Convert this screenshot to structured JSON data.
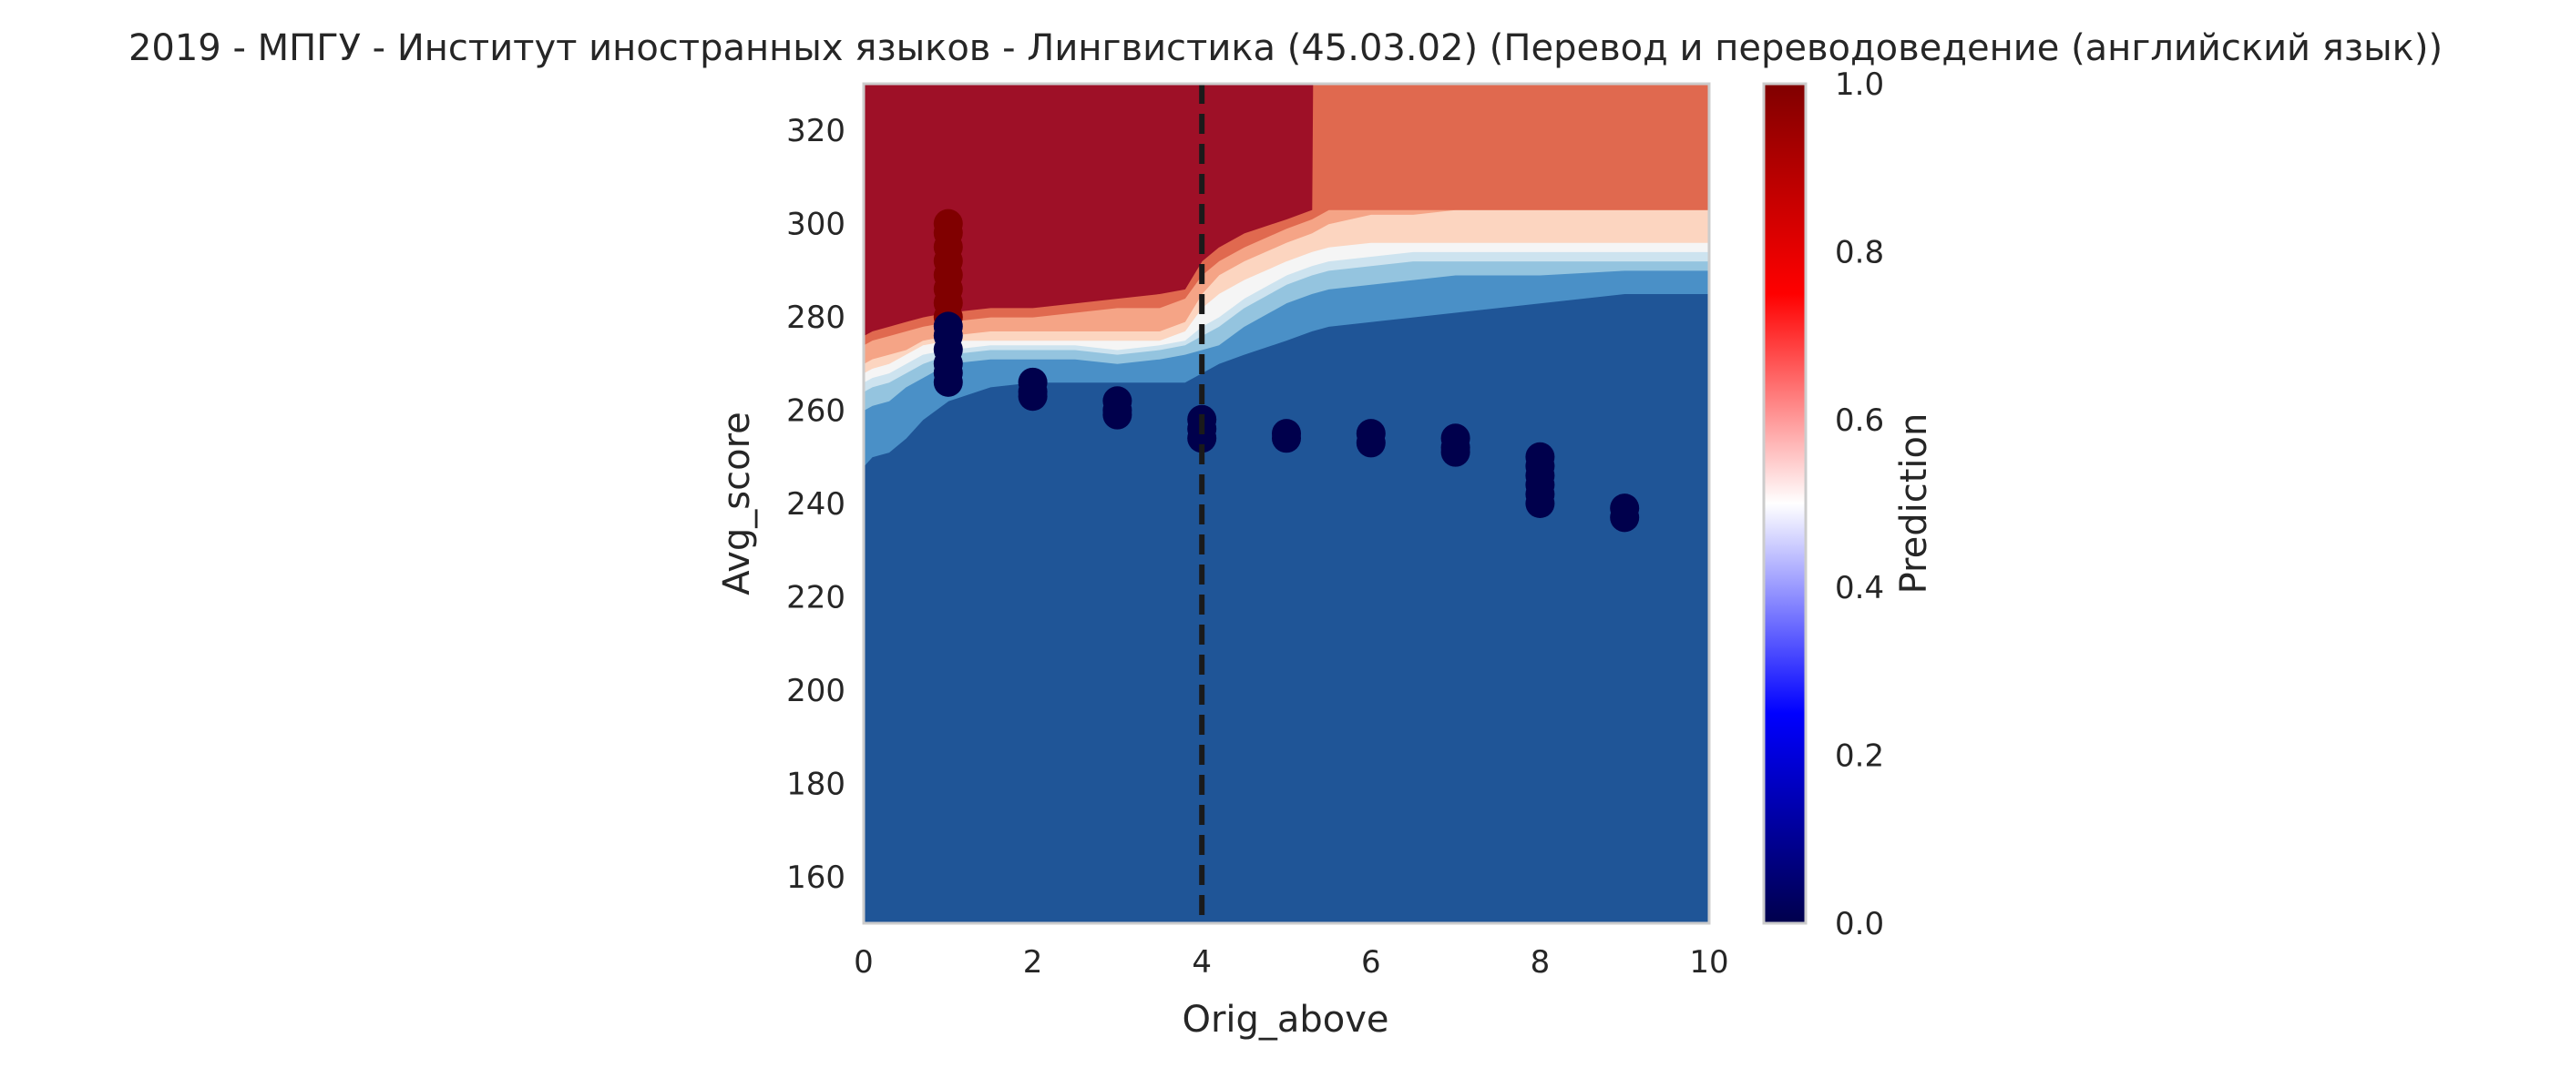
{
  "chart_data": {
    "type": "contour",
    "title": "2019 - МПГУ - Институт иностранных языков - Лингвистика (45.03.02) (Перевод и переводоведение (английский язык))",
    "xlabel": "Orig_above",
    "ylabel": "Avg_score",
    "xlim": [
      0,
      10
    ],
    "ylim": [
      150,
      330
    ],
    "xticks": [
      "0",
      "2",
      "4",
      "6",
      "8",
      "10"
    ],
    "yticks": [
      "160",
      "180",
      "200",
      "220",
      "240",
      "260",
      "280",
      "300",
      "320"
    ],
    "grid": false,
    "threshold_line": {
      "x": 4,
      "style": "dashed",
      "color": "#1a1a1a"
    },
    "contour_levels": [
      {
        "range": "0.0-0.1",
        "color": "#1f5597"
      },
      {
        "range": "0.1-0.2",
        "color": "#4a90c7"
      },
      {
        "range": "0.2-0.3",
        "color": "#94c4df"
      },
      {
        "range": "0.3-0.4",
        "color": "#cde3ef"
      },
      {
        "range": "0.4-0.5",
        "color": "#f5f5f5"
      },
      {
        "range": "0.5-0.6",
        "color": "#fcd5c0"
      },
      {
        "range": "0.6-0.7",
        "color": "#f5a486"
      },
      {
        "range": "0.7-0.8",
        "color": "#e0694f"
      },
      {
        "range": "0.9-1.0",
        "color": "#9e1027"
      }
    ],
    "contour_boundaries": [
      {
        "x": [
          0,
          0.1,
          0.3,
          0.5,
          0.7,
          1.0,
          1.5,
          2.0,
          2.5,
          3.0,
          3.5,
          3.8,
          4.0,
          4.2,
          4.5,
          5.0,
          5.3,
          5.5,
          6.0,
          6.5,
          7.0,
          8.0,
          9.0,
          10.0
        ],
        "y": [
          248,
          250,
          251,
          254,
          258,
          262,
          265,
          266,
          266,
          266,
          266,
          266,
          268,
          270,
          272,
          275,
          277,
          278,
          279,
          280,
          281,
          283,
          285,
          285
        ]
      },
      {
        "x": [
          0,
          0.1,
          0.3,
          0.5,
          0.7,
          1.0,
          1.5,
          2.0,
          2.5,
          3.0,
          3.5,
          3.8,
          4.0,
          4.2,
          4.5,
          5.0,
          5.3,
          5.5,
          6.0,
          6.5,
          7.0,
          8.0,
          9.0,
          10.0
        ],
        "y": [
          260,
          261,
          262,
          265,
          267,
          270,
          271,
          271,
          271,
          270,
          271,
          272,
          273,
          274,
          278,
          283,
          285,
          286,
          287,
          288,
          289,
          289,
          290,
          290
        ]
      },
      {
        "x": [
          0,
          0.1,
          0.3,
          0.5,
          0.7,
          1.0,
          1.5,
          2.0,
          2.5,
          3.0,
          3.5,
          3.8,
          4.0,
          4.2,
          4.5,
          5.0,
          5.3,
          5.5,
          6.0,
          6.5,
          7.0,
          8.0,
          9.0,
          10.0
        ],
        "y": [
          264,
          265,
          266,
          268,
          270,
          272,
          273,
          273,
          273,
          272,
          273,
          274,
          276,
          278,
          282,
          287,
          289,
          290,
          291,
          292,
          292,
          292,
          292,
          292
        ]
      },
      {
        "x": [
          0,
          0.1,
          0.3,
          0.5,
          0.7,
          1.0,
          1.5,
          2.0,
          2.5,
          3.0,
          3.5,
          3.8,
          4.0,
          4.2,
          4.5,
          5.0,
          5.3,
          5.5,
          6.0,
          6.5,
          7.0,
          8.0,
          9.0,
          10.0
        ],
        "y": [
          266,
          267,
          268,
          270,
          272,
          273,
          274,
          274,
          274,
          273,
          274,
          275,
          278,
          280,
          284,
          289,
          291,
          292,
          293,
          294,
          294,
          294,
          294,
          294
        ]
      },
      {
        "x": [
          0,
          0.1,
          0.3,
          0.5,
          0.7,
          1.0,
          1.5,
          2.0,
          2.5,
          3.0,
          3.5,
          3.8,
          4.0,
          4.2,
          4.5,
          5.0,
          5.3,
          5.5,
          6.0,
          6.5,
          7.0,
          8.0,
          9.0,
          10.0
        ],
        "y": [
          268,
          269,
          270,
          272,
          274,
          275,
          275,
          275,
          275,
          275,
          275,
          277,
          282,
          285,
          288,
          292,
          294,
          295,
          296,
          296,
          296,
          296,
          296,
          296
        ]
      },
      {
        "x": [
          0,
          0.1,
          0.3,
          0.5,
          0.7,
          1.0,
          1.5,
          2.0,
          2.5,
          3.0,
          3.5,
          3.8,
          4.0,
          4.2,
          4.5,
          5.0,
          5.3,
          5.5,
          6.0,
          6.5,
          7.0,
          8.0,
          9.0,
          10.0
        ],
        "y": [
          270,
          271,
          272,
          273,
          275,
          276,
          277,
          277,
          277,
          277,
          277,
          279,
          285,
          289,
          292,
          296,
          298,
          300,
          302,
          302,
          303,
          303,
          303,
          303
        ]
      },
      {
        "x": [
          0,
          0.1,
          0.3,
          0.5,
          0.7,
          1.0,
          1.5,
          2.0,
          2.5,
          3.0,
          3.5,
          3.8,
          4.0,
          4.2,
          4.5,
          5.0,
          5.3,
          5.5,
          6.0,
          6.5,
          7.0,
          8.0,
          9.0,
          10.0
        ],
        "y": [
          274,
          275,
          276,
          277,
          278,
          279,
          280,
          280,
          281,
          282,
          282,
          284,
          289,
          292,
          295,
          299,
          301,
          303,
          303,
          303,
          303,
          303,
          303,
          303
        ]
      },
      {
        "x": [
          0,
          0.1,
          0.3,
          0.5,
          0.7,
          1.0,
          1.5,
          2.0,
          2.5,
          3.0,
          3.5,
          3.8,
          4.0,
          4.2,
          4.5,
          5.0,
          5.3,
          5.31,
          5.5,
          6.0,
          6.5,
          7.0,
          8.0,
          9.0,
          10.0
        ],
        "y": [
          276,
          277,
          278,
          279,
          280,
          281,
          282,
          282,
          283,
          284,
          285,
          286,
          292,
          295,
          298,
          301,
          303,
          330,
          330,
          330,
          330,
          330,
          330,
          330,
          330
        ]
      }
    ],
    "scatter": [
      {
        "x": 1,
        "y": 300,
        "v": 1.0
      },
      {
        "x": 1,
        "y": 298,
        "v": 1.0
      },
      {
        "x": 1,
        "y": 295,
        "v": 1.0
      },
      {
        "x": 1,
        "y": 292,
        "v": 1.0
      },
      {
        "x": 1,
        "y": 289,
        "v": 1.0
      },
      {
        "x": 1,
        "y": 286,
        "v": 1.0
      },
      {
        "x": 1,
        "y": 283,
        "v": 1.0
      },
      {
        "x": 1,
        "y": 280,
        "v": 1.0
      },
      {
        "x": 1,
        "y": 278,
        "v": 0.0
      },
      {
        "x": 1,
        "y": 276,
        "v": 0.0
      },
      {
        "x": 1,
        "y": 273,
        "v": 0.0
      },
      {
        "x": 1,
        "y": 270,
        "v": 0.0
      },
      {
        "x": 1,
        "y": 268,
        "v": 0.0
      },
      {
        "x": 1,
        "y": 266,
        "v": 0.0
      },
      {
        "x": 2,
        "y": 266,
        "v": 0.0
      },
      {
        "x": 2,
        "y": 264,
        "v": 0.0
      },
      {
        "x": 2,
        "y": 263,
        "v": 0.0
      },
      {
        "x": 3,
        "y": 262,
        "v": 0.0
      },
      {
        "x": 3,
        "y": 260,
        "v": 0.0
      },
      {
        "x": 3,
        "y": 259,
        "v": 0.0
      },
      {
        "x": 4,
        "y": 258,
        "v": 0.0
      },
      {
        "x": 4,
        "y": 256,
        "v": 0.0
      },
      {
        "x": 4,
        "y": 254,
        "v": 0.0
      },
      {
        "x": 5,
        "y": 255,
        "v": 0.0
      },
      {
        "x": 5,
        "y": 254,
        "v": 0.0
      },
      {
        "x": 6,
        "y": 255,
        "v": 0.0
      },
      {
        "x": 6,
        "y": 253,
        "v": 0.0
      },
      {
        "x": 7,
        "y": 254,
        "v": 0.0
      },
      {
        "x": 7,
        "y": 252,
        "v": 0.0
      },
      {
        "x": 7,
        "y": 251,
        "v": 0.0
      },
      {
        "x": 8,
        "y": 250,
        "v": 0.0
      },
      {
        "x": 8,
        "y": 248,
        "v": 0.0
      },
      {
        "x": 8,
        "y": 246,
        "v": 0.0
      },
      {
        "x": 8,
        "y": 244,
        "v": 0.0
      },
      {
        "x": 8,
        "y": 242,
        "v": 0.0
      },
      {
        "x": 8,
        "y": 240,
        "v": 0.0
      },
      {
        "x": 9,
        "y": 239,
        "v": 0.0
      },
      {
        "x": 9,
        "y": 237,
        "v": 0.0
      }
    ],
    "colorbar": {
      "label": "Prediction",
      "ticks": [
        "0.0",
        "0.2",
        "0.4",
        "0.6",
        "0.8",
        "1.0"
      ],
      "range": [
        0,
        1
      ],
      "colormap": "seismic"
    }
  }
}
